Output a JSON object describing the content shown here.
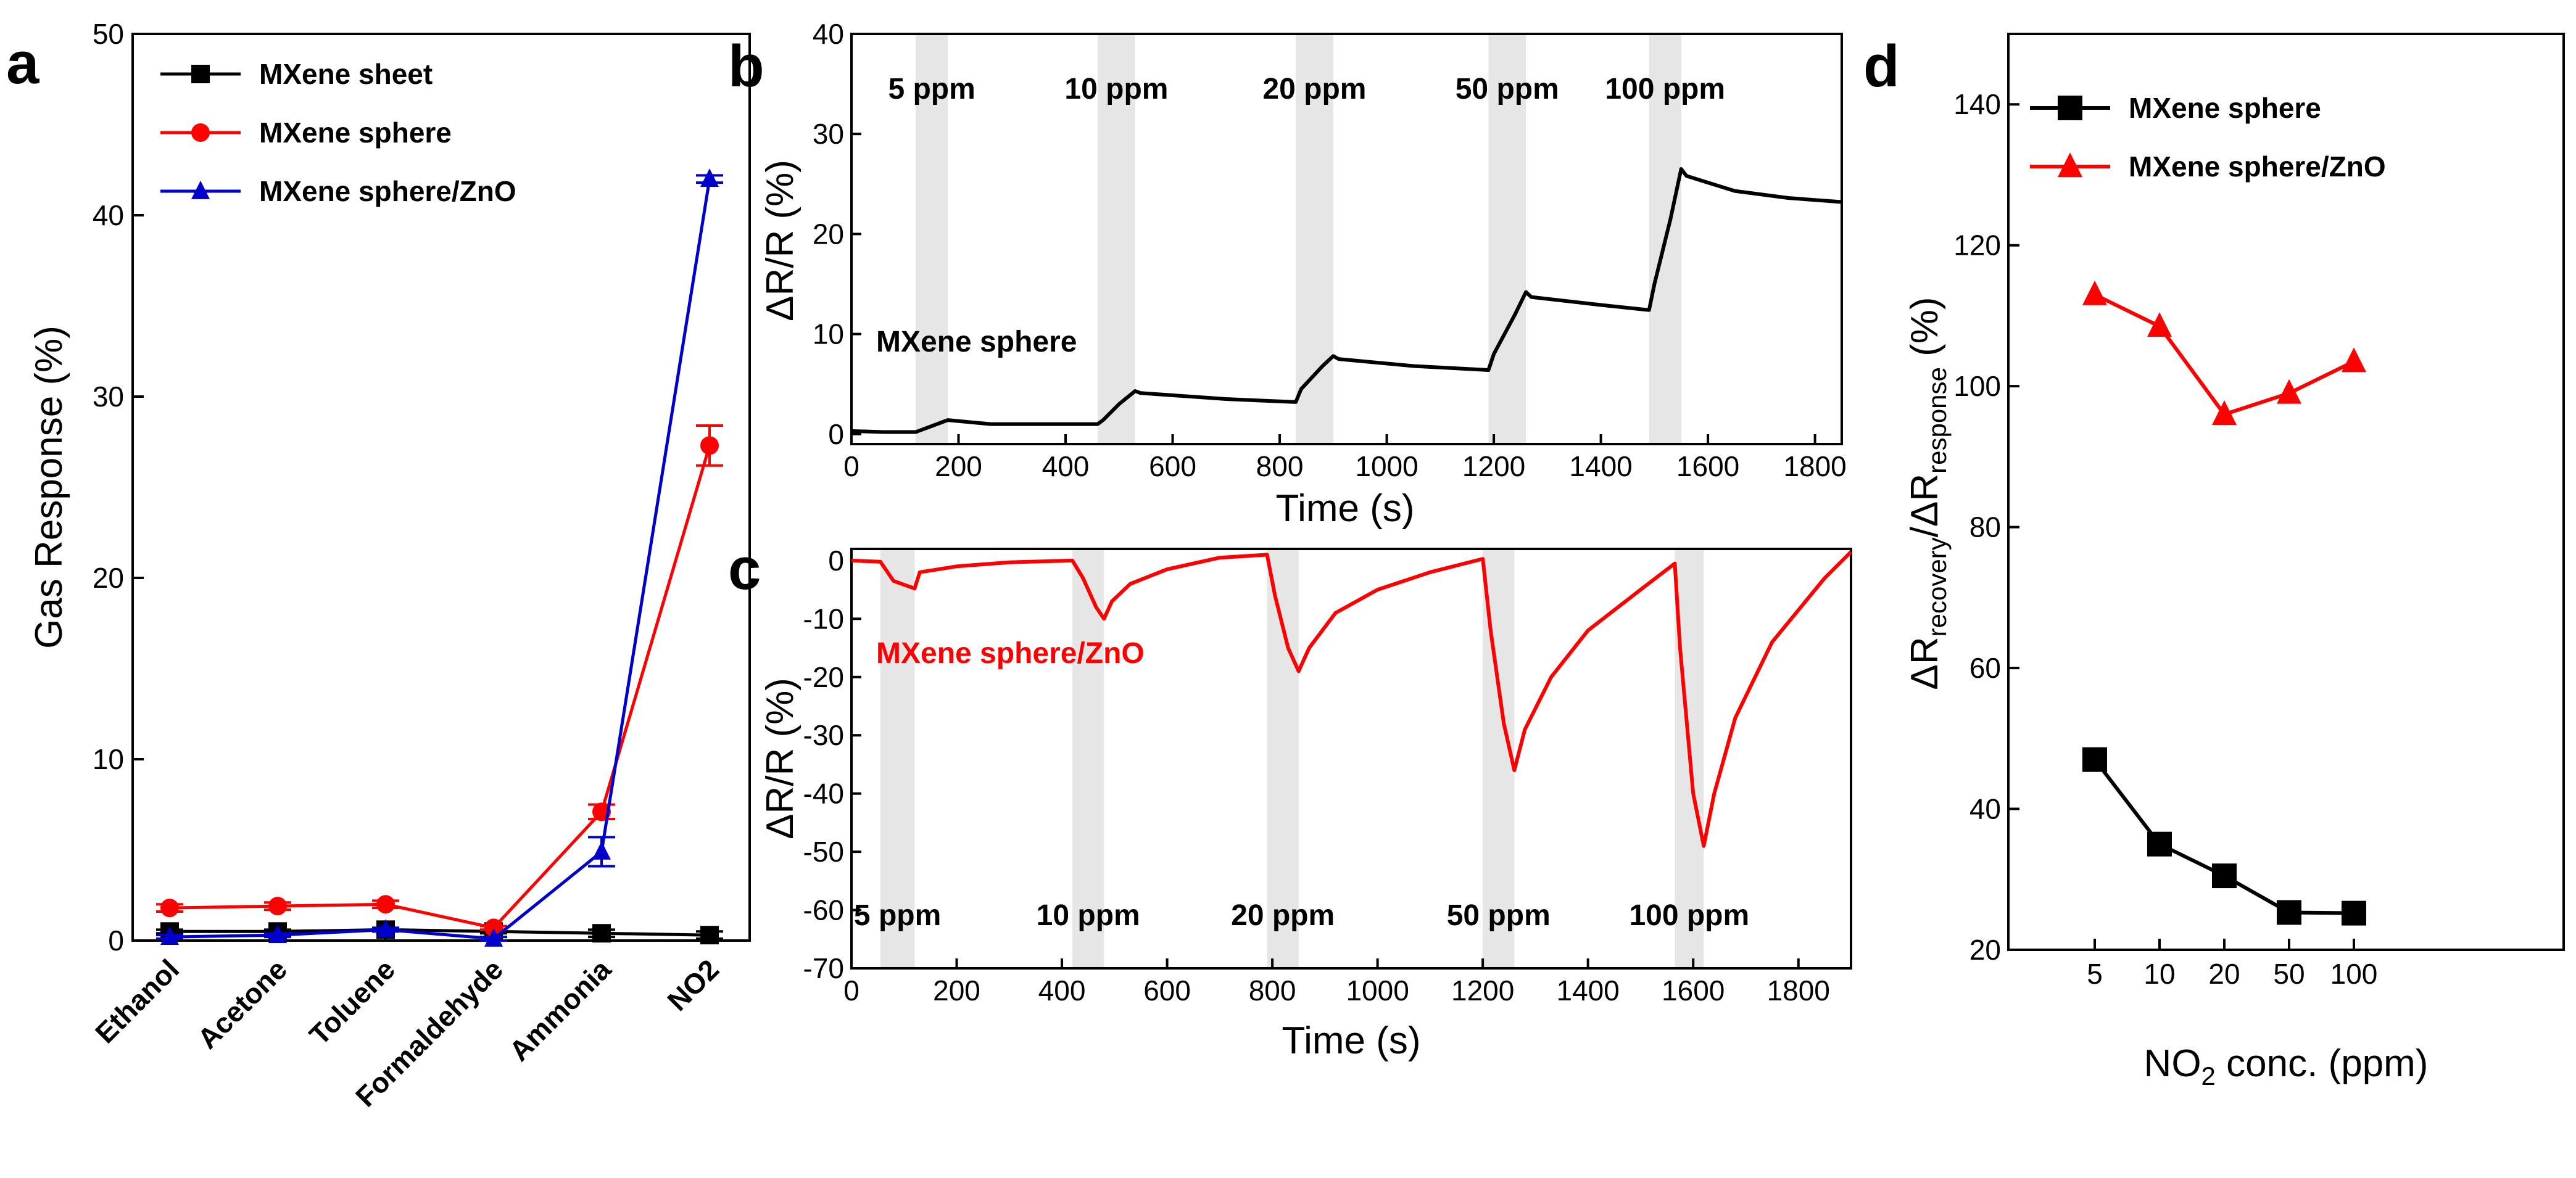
{
  "panels": {
    "a": {
      "letter": "a",
      "chart_data": {
        "type": "line",
        "categories": [
          "Ethanol",
          "Acetone",
          "Toluene",
          "Formaldehyde",
          "Ammonia",
          "NO2"
        ],
        "xlabel": "",
        "ylabel": "Gas Response (%)",
        "ylim": [
          0,
          50
        ],
        "yticks": [
          0,
          10,
          20,
          30,
          40,
          50
        ],
        "legend_position": "top-left",
        "series": [
          {
            "name": "MXene sheet",
            "color": "#000000",
            "marker": "square",
            "values": [
              0.5,
              0.5,
              0.6,
              0.5,
              0.4,
              0.3
            ],
            "errors": [
              0.1,
              0.1,
              0.1,
              0.1,
              0.2,
              0.2
            ]
          },
          {
            "name": "MXene sphere",
            "color": "#ff0000",
            "marker": "circle",
            "values": [
              1.8,
              1.9,
              2.0,
              0.7,
              7.1,
              27.3
            ],
            "errors": [
              0.2,
              0.2,
              0.2,
              0.1,
              0.4,
              1.1
            ]
          },
          {
            "name": "MXene sphere/ZnO",
            "color": "#0000cc",
            "marker": "triangle",
            "values": [
              0.2,
              0.3,
              0.6,
              0.1,
              4.9,
              42.0
            ],
            "errors": [
              0.1,
              0.1,
              0.1,
              0.1,
              0.8,
              0.2
            ]
          }
        ]
      }
    },
    "b": {
      "letter": "b",
      "chart_data": {
        "type": "line",
        "title": "MXene sphere",
        "xlabel": "Time (s)",
        "ylabel": "ΔR/R (%)",
        "xlim": [
          0,
          1850
        ],
        "ylim": [
          -1,
          40
        ],
        "xticks": [
          0,
          200,
          400,
          600,
          800,
          1000,
          1200,
          1400,
          1600,
          1800
        ],
        "yticks": [
          0,
          10,
          20,
          30,
          40
        ],
        "color": "#000000",
        "exposure_windows": [
          [
            120,
            180
          ],
          [
            460,
            530
          ],
          [
            830,
            900
          ],
          [
            1190,
            1260
          ],
          [
            1490,
            1550
          ]
        ],
        "concentration_labels": [
          "5 ppm",
          "10 ppm",
          "20 ppm",
          "50 ppm",
          "100 ppm"
        ],
        "x": [
          0,
          60,
          120,
          150,
          180,
          260,
          460,
          470,
          500,
          530,
          540,
          700,
          830,
          840,
          880,
          900,
          910,
          1050,
          1190,
          1200,
          1240,
          1260,
          1270,
          1400,
          1490,
          1500,
          1530,
          1550,
          1560,
          1650,
          1750,
          1850
        ],
        "y": [
          0.3,
          0.2,
          0.2,
          0.8,
          1.4,
          1.0,
          1.0,
          1.4,
          3.0,
          4.3,
          4.1,
          3.5,
          3.2,
          4.5,
          6.8,
          7.8,
          7.5,
          6.8,
          6.4,
          8.0,
          12.0,
          14.2,
          13.7,
          12.9,
          12.4,
          15.0,
          21.5,
          26.5,
          25.8,
          24.3,
          23.6,
          23.2
        ]
      }
    },
    "c": {
      "letter": "c",
      "chart_data": {
        "type": "line",
        "title": "MXene sphere/ZnO",
        "xlabel": "Time (s)",
        "ylabel": "ΔR/R (%)",
        "xlim": [
          0,
          1900
        ],
        "ylim": [
          -70,
          2
        ],
        "xticks": [
          0,
          200,
          400,
          600,
          800,
          1000,
          1200,
          1400,
          1600,
          1800
        ],
        "yticks": [
          0,
          -10,
          -20,
          -30,
          -40,
          -50,
          -60,
          -70
        ],
        "color": "#ff0000",
        "exposure_windows": [
          [
            55,
            120
          ],
          [
            420,
            480
          ],
          [
            790,
            850
          ],
          [
            1200,
            1260
          ],
          [
            1565,
            1620
          ]
        ],
        "concentration_labels": [
          "5 ppm",
          "10 ppm",
          "20 ppm",
          "50 ppm",
          "100 ppm"
        ],
        "x": [
          0,
          55,
          80,
          120,
          130,
          200,
          300,
          420,
          440,
          465,
          480,
          495,
          530,
          600,
          700,
          790,
          805,
          830,
          850,
          870,
          920,
          1000,
          1100,
          1200,
          1215,
          1240,
          1260,
          1280,
          1330,
          1400,
          1500,
          1565,
          1575,
          1600,
          1620,
          1640,
          1680,
          1750,
          1850,
          1900
        ],
        "y": [
          0,
          -0.2,
          -3.5,
          -4.8,
          -2.0,
          -1.0,
          -0.3,
          0,
          -3.0,
          -8.0,
          -10.0,
          -7.0,
          -4.0,
          -1.5,
          0.5,
          1.0,
          -6.0,
          -15.0,
          -19.0,
          -15.0,
          -9.0,
          -5.0,
          -2.0,
          0.3,
          -12.0,
          -28.0,
          -36.0,
          -29.0,
          -20.0,
          -12.0,
          -5.0,
          -0.5,
          -15.0,
          -40.0,
          -49.0,
          -40.0,
          -27.0,
          -14.0,
          -3.0,
          1.5
        ]
      }
    },
    "d": {
      "letter": "d",
      "chart_data": {
        "type": "line",
        "categories": [
          "5",
          "10",
          "20",
          "50",
          "100"
        ],
        "xlabel": "NO2 conc. (ppm)",
        "ylabel": "ΔR_recovery/ΔR_response (%)",
        "ylim": [
          20,
          150
        ],
        "yticks": [
          20,
          40,
          60,
          80,
          100,
          120,
          140
        ],
        "legend_position": "top-left",
        "series": [
          {
            "name": "MXene sphere",
            "color": "#000000",
            "marker": "square",
            "values": [
              47,
              35,
              30.5,
              25.3,
              25.2
            ]
          },
          {
            "name": "MXene sphere/ZnO",
            "color": "#ff0000",
            "marker": "triangle",
            "values": [
              113,
              108.5,
              96,
              99,
              103.5
            ]
          }
        ]
      }
    }
  },
  "labels": {
    "c_ylabel_main": "ΔR/R (%)",
    "d_ylabel_part1": "ΔR",
    "d_ylabel_sub1": "recovery",
    "d_ylabel_part2": "/ΔR",
    "d_ylabel_sub2": "response",
    "d_ylabel_part3": " (%)",
    "d_xlabel_part1": "NO",
    "d_xlabel_sub": "2",
    "d_xlabel_part2": " conc. (ppm)"
  }
}
